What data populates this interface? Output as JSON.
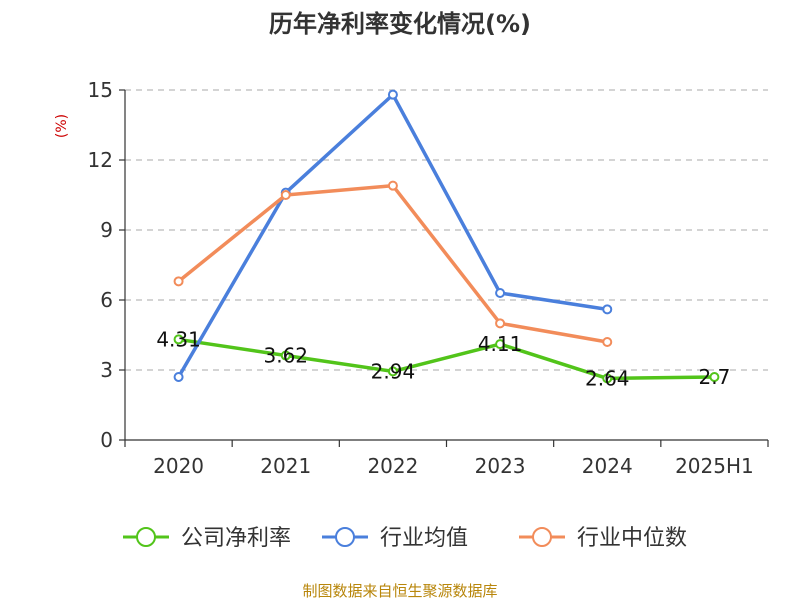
{
  "chart_data": {
    "type": "line",
    "title": "历年净利率变化情况(%)",
    "y_unit": "(%)",
    "categories": [
      "2020",
      "2021",
      "2022",
      "2023",
      "2024",
      "2025H1"
    ],
    "ylim": [
      0,
      15
    ],
    "yticks": [
      "0",
      "3",
      "6",
      "9",
      "12",
      "15"
    ],
    "grid": "horizontal dashed",
    "legend_position": "bottom",
    "series": [
      {
        "name": "公司净利率",
        "color": "#52c41a",
        "values": [
          4.31,
          3.62,
          2.94,
          4.11,
          2.64,
          2.7
        ],
        "labels": [
          "4.31",
          "3.62",
          "2.94",
          "4.11",
          "2.64",
          "2.7"
        ]
      },
      {
        "name": "行业均值",
        "color": "#4a7fdc",
        "values": [
          2.7,
          10.6,
          14.8,
          6.3,
          5.6,
          null
        ]
      },
      {
        "name": "行业中位数",
        "color": "#f28c5a",
        "values": [
          6.8,
          10.5,
          10.9,
          5.0,
          4.2,
          null
        ]
      }
    ],
    "source": "制图数据来自恒生聚源数据库"
  }
}
